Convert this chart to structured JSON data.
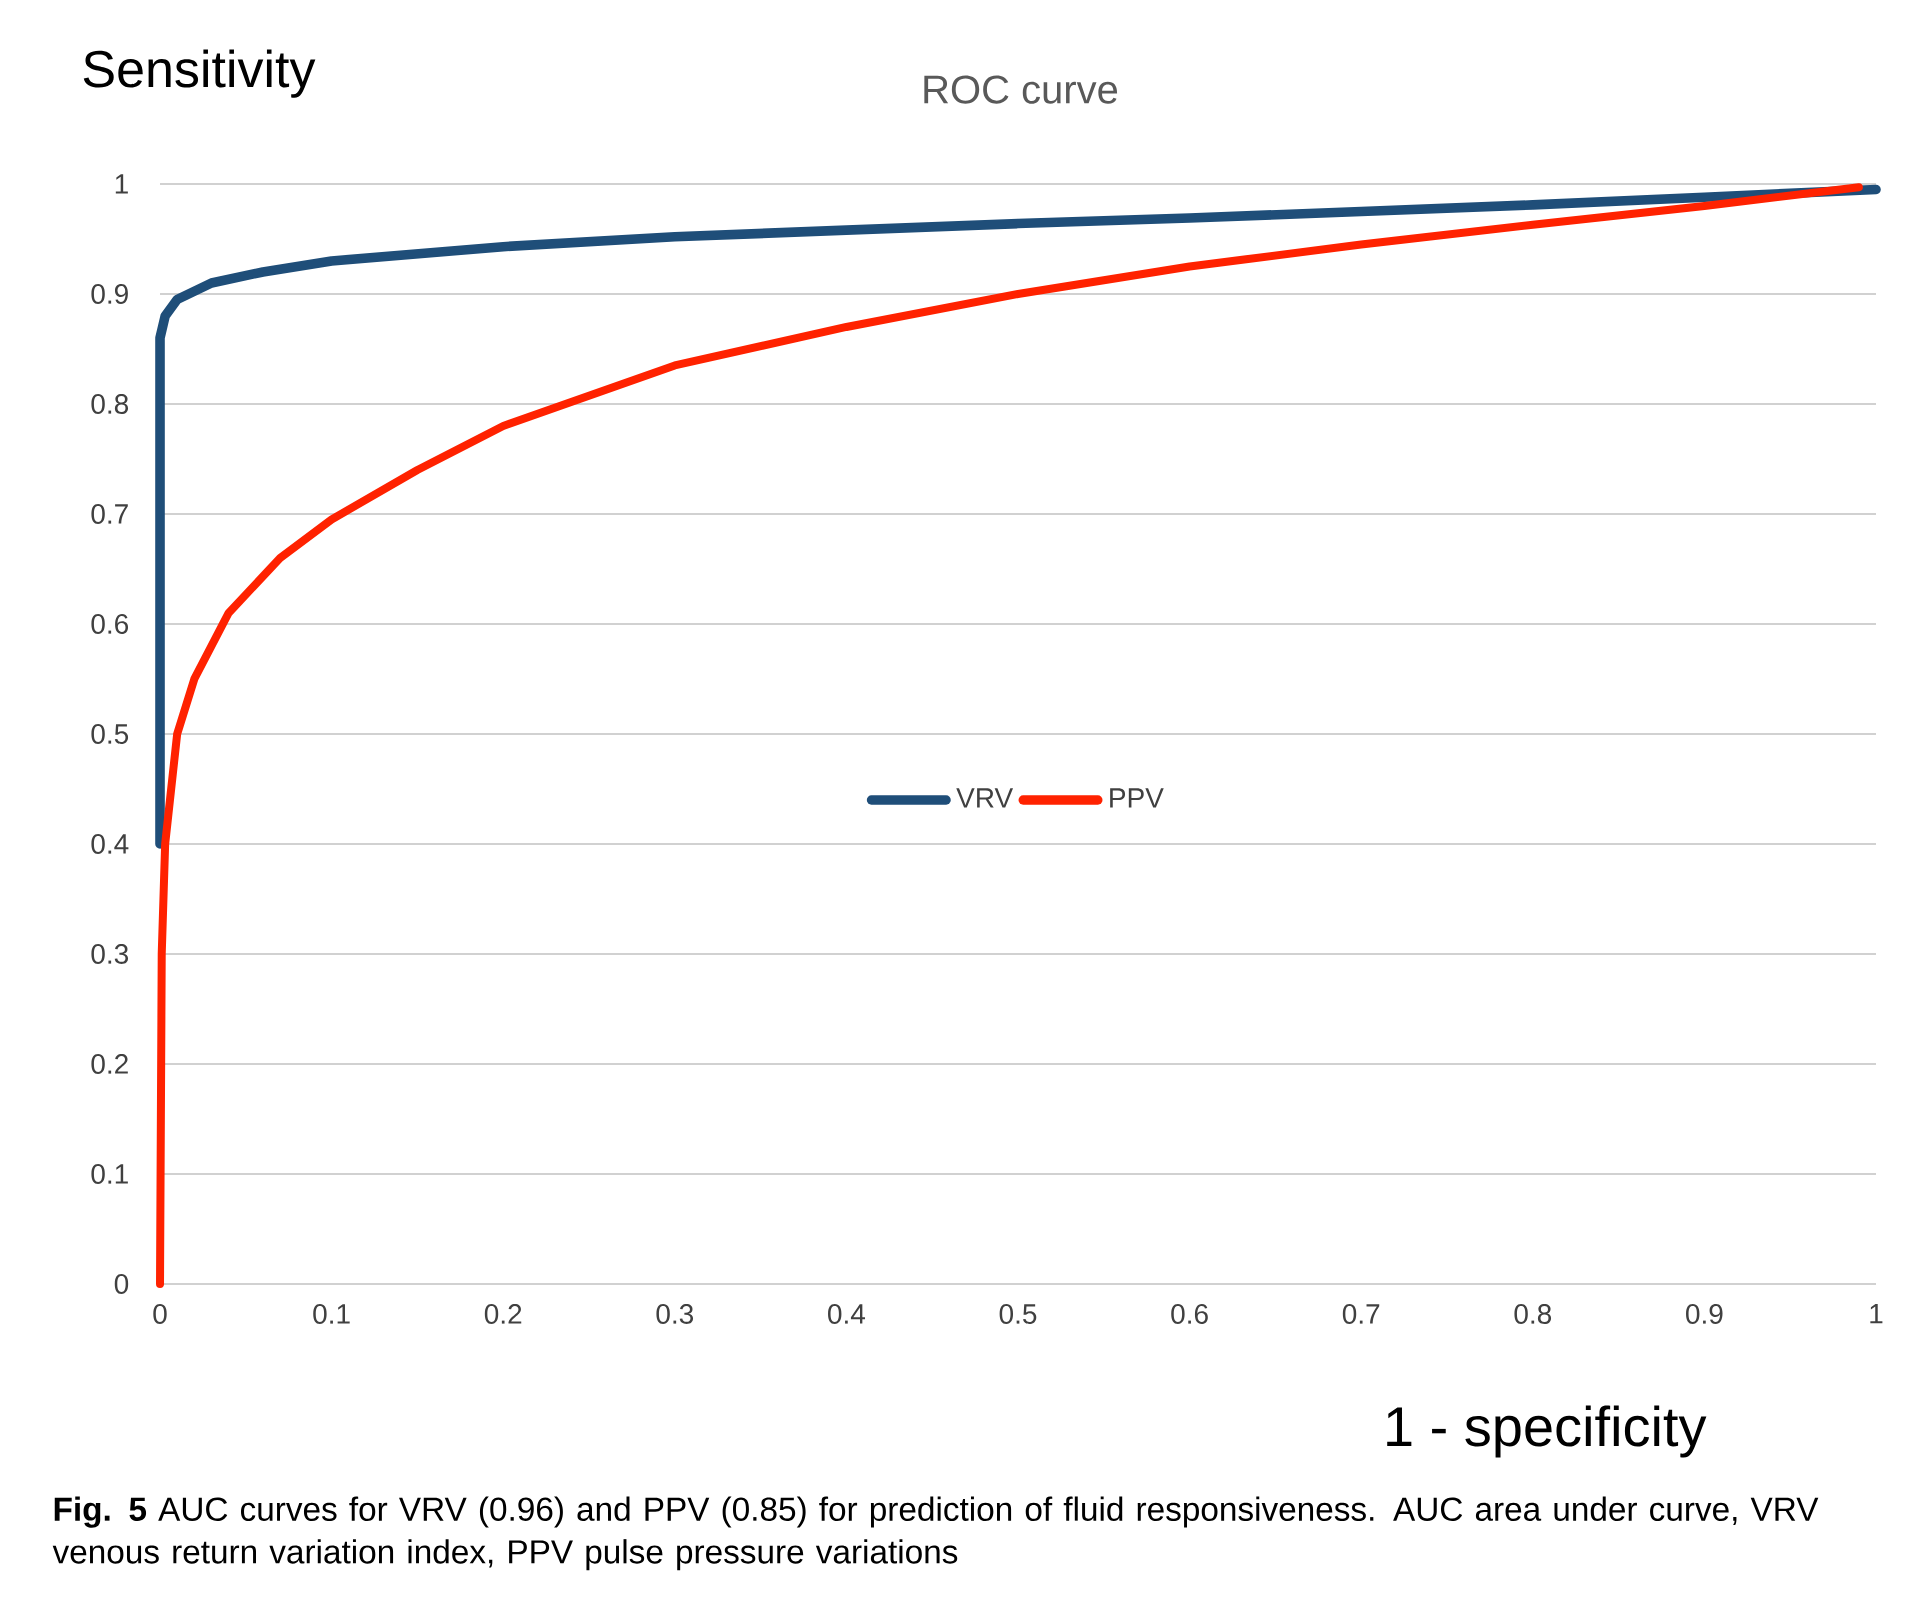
{
  "chart_data": {
    "type": "line",
    "title": "ROC curve",
    "xlabel": "1 - specificity",
    "ylabel": "Sensitivity",
    "xlim": [
      0,
      1
    ],
    "ylim": [
      0,
      1
    ],
    "xticks": [
      0,
      0.1,
      0.2,
      0.3,
      0.4,
      0.5,
      0.6,
      0.7,
      0.8,
      0.9,
      1
    ],
    "yticks": [
      0,
      0.1,
      0.2,
      0.3,
      0.4,
      0.5,
      0.6,
      0.7,
      0.8,
      0.9,
      1
    ],
    "grid": "y",
    "legend": "center",
    "series": [
      {
        "name": "VRV",
        "color": "#1f4e79",
        "x": [
          0,
          0,
          0.003,
          0.01,
          0.03,
          0.06,
          0.1,
          0.2,
          0.3,
          0.4,
          0.5,
          0.6,
          0.7,
          0.8,
          0.9,
          1
        ],
        "values": [
          0.4,
          0.86,
          0.88,
          0.895,
          0.91,
          0.92,
          0.93,
          0.943,
          0.952,
          0.958,
          0.964,
          0.969,
          0.975,
          0.981,
          0.988,
          0.995
        ]
      },
      {
        "name": "PPV",
        "color": "#ff2200",
        "x": [
          0,
          0.001,
          0.003,
          0.01,
          0.02,
          0.04,
          0.07,
          0.1,
          0.15,
          0.2,
          0.3,
          0.4,
          0.5,
          0.6,
          0.7,
          0.8,
          0.9,
          0.99
        ],
        "values": [
          0,
          0.3,
          0.4,
          0.5,
          0.55,
          0.61,
          0.66,
          0.695,
          0.74,
          0.78,
          0.835,
          0.87,
          0.9,
          0.925,
          0.945,
          0.963,
          0.98,
          0.997
        ]
      }
    ],
    "annotations": [
      "**Fig. 5** AUC curves for VRV (0.96) and PPV (0.85) for prediction of fluid responsiveness. AUC area under curve, VRV venous return variation index, PPV pulse pressure variations"
    ]
  }
}
